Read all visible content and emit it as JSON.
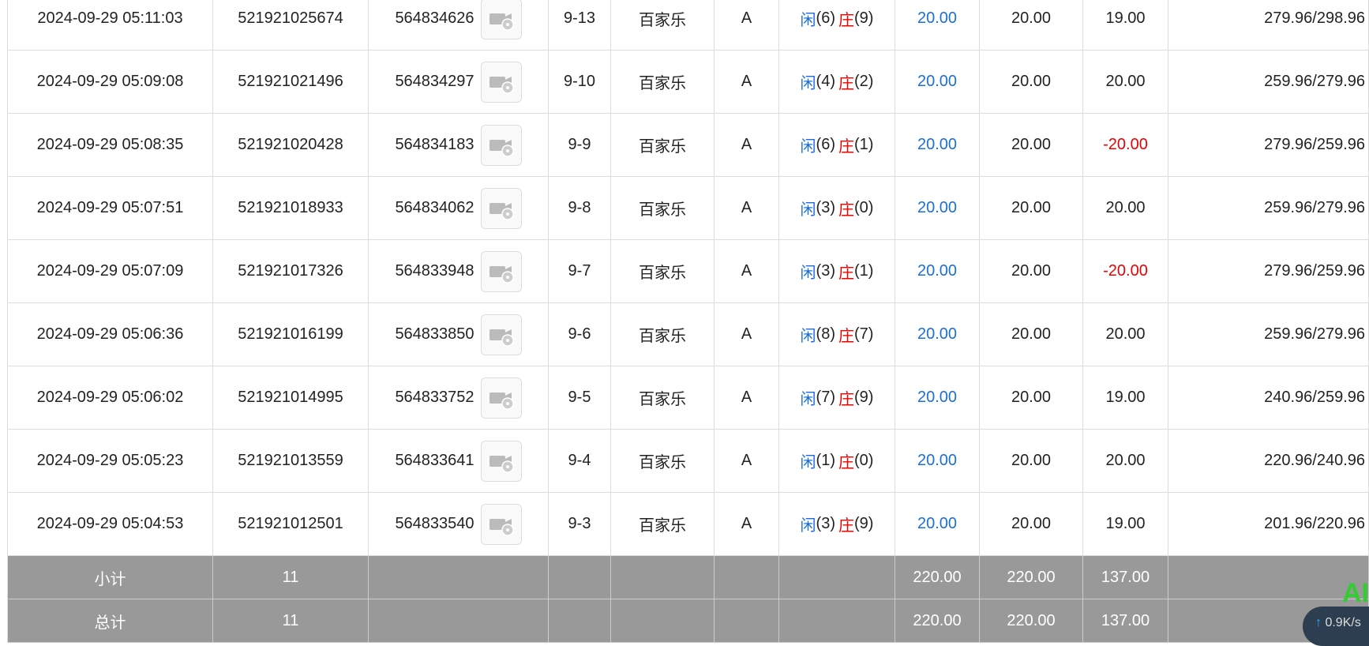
{
  "table": {
    "rows": [
      [
        "2024-09-29 05:11:03",
        "521921025674",
        "564834626",
        "9-13",
        "百家乐",
        "A",
        {
          "player": "闲",
          "player_score": "(6)",
          "banker": "庄",
          "banker_score": "(9)"
        },
        "20.00",
        "20.00",
        "19.00",
        "279.96/298.96"
      ],
      [
        "2024-09-29 05:09:08",
        "521921021496",
        "564834297",
        "9-10",
        "百家乐",
        "A",
        {
          "player": "闲",
          "player_score": "(4)",
          "banker": "庄",
          "banker_score": "(2)"
        },
        "20.00",
        "20.00",
        "20.00",
        "259.96/279.96"
      ],
      [
        "2024-09-29 05:08:35",
        "521921020428",
        "564834183",
        "9-9",
        "百家乐",
        "A",
        {
          "player": "闲",
          "player_score": "(6)",
          "banker": "庄",
          "banker_score": "(1)"
        },
        "20.00",
        "20.00",
        "-20.00",
        "279.96/259.96"
      ],
      [
        "2024-09-29 05:07:51",
        "521921018933",
        "564834062",
        "9-8",
        "百家乐",
        "A",
        {
          "player": "闲",
          "player_score": "(3)",
          "banker": "庄",
          "banker_score": "(0)"
        },
        "20.00",
        "20.00",
        "20.00",
        "259.96/279.96"
      ],
      [
        "2024-09-29 05:07:09",
        "521921017326",
        "564833948",
        "9-7",
        "百家乐",
        "A",
        {
          "player": "闲",
          "player_score": "(3)",
          "banker": "庄",
          "banker_score": "(1)"
        },
        "20.00",
        "20.00",
        "-20.00",
        "279.96/259.96"
      ],
      [
        "2024-09-29 05:06:36",
        "521921016199",
        "564833850",
        "9-6",
        "百家乐",
        "A",
        {
          "player": "闲",
          "player_score": "(8)",
          "banker": "庄",
          "banker_score": "(7)"
        },
        "20.00",
        "20.00",
        "20.00",
        "259.96/279.96"
      ],
      [
        "2024-09-29 05:06:02",
        "521921014995",
        "564833752",
        "9-5",
        "百家乐",
        "A",
        {
          "player": "闲",
          "player_score": "(7)",
          "banker": "庄",
          "banker_score": "(9)"
        },
        "20.00",
        "20.00",
        "19.00",
        "240.96/259.96"
      ],
      [
        "2024-09-29 05:05:23",
        "521921013559",
        "564833641",
        "9-4",
        "百家乐",
        "A",
        {
          "player": "闲",
          "player_score": "(1)",
          "banker": "庄",
          "banker_score": "(0)"
        },
        "20.00",
        "20.00",
        "20.00",
        "220.96/240.96"
      ],
      [
        "2024-09-29 05:04:53",
        "521921012501",
        "564833540",
        "9-3",
        "百家乐",
        "A",
        {
          "player": "闲",
          "player_score": "(3)",
          "banker": "庄",
          "banker_score": "(9)"
        },
        "20.00",
        "20.00",
        "19.00",
        "201.96/220.96"
      ]
    ],
    "footer": [
      [
        "小计",
        "11",
        "",
        "",
        "",
        "",
        "",
        "220.00",
        "220.00",
        "137.00",
        ""
      ],
      [
        "总计",
        "11",
        "",
        "",
        "",
        "",
        "",
        "220.00",
        "220.00",
        "137.00",
        ""
      ]
    ]
  },
  "overlay": {
    "badge": "AI",
    "network_speed": "0.9K/s"
  }
}
